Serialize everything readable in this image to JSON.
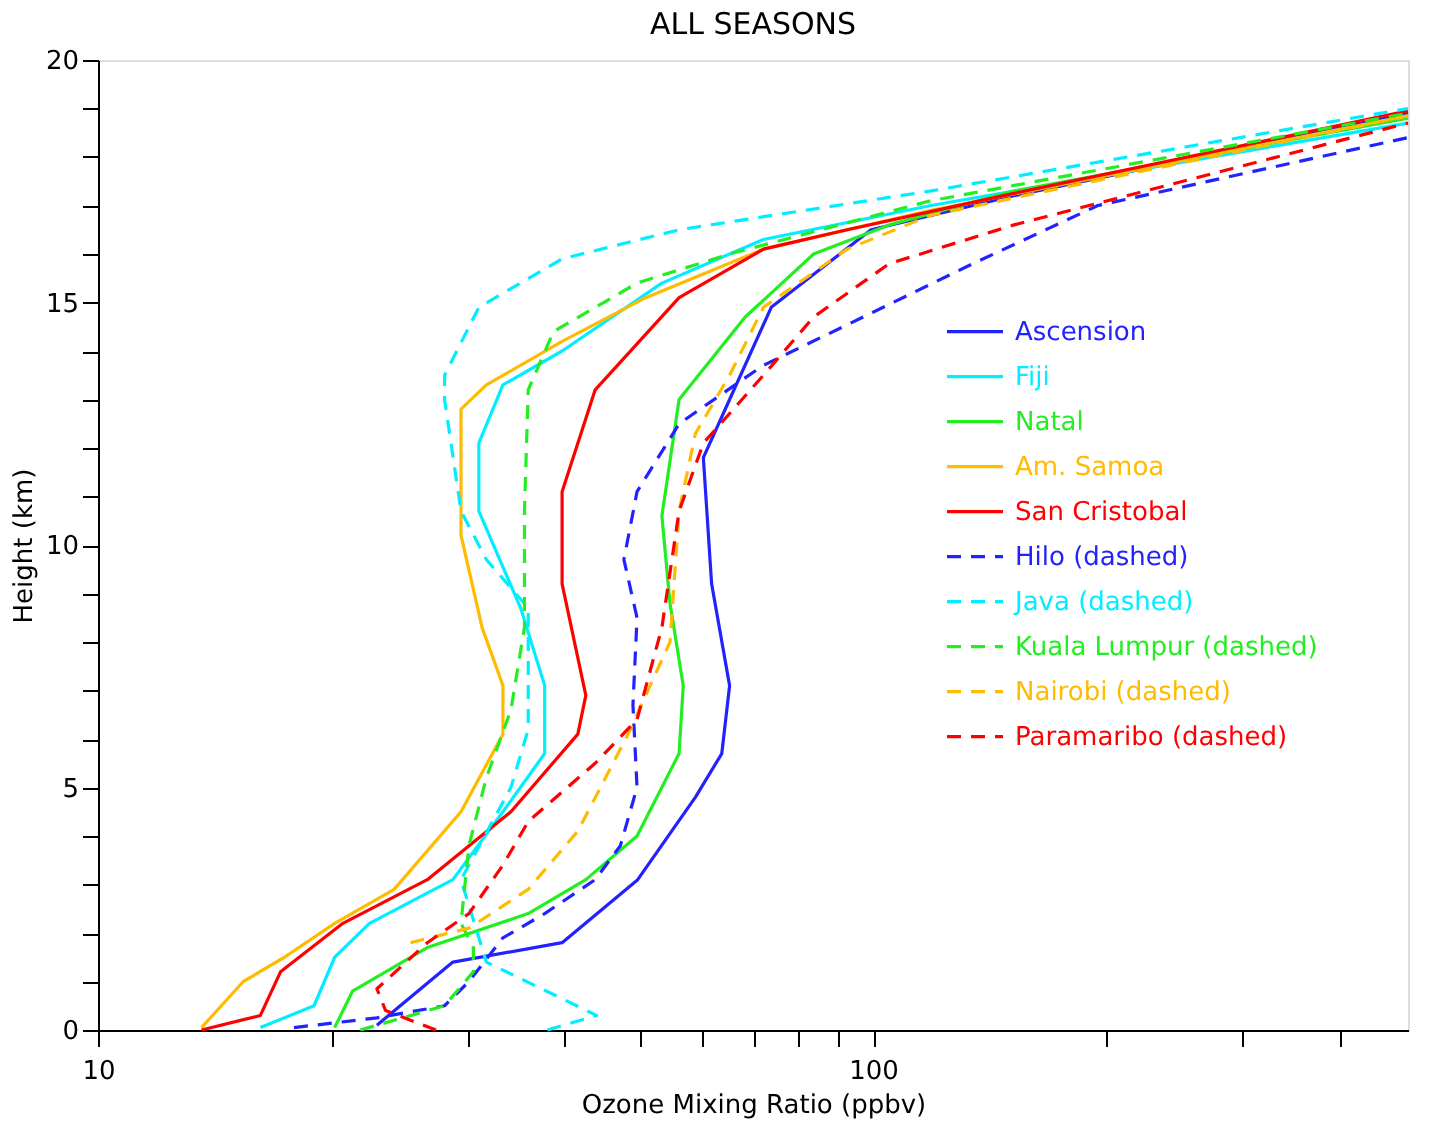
{
  "chart_data": {
    "type": "line",
    "title": "ALL SEASONS",
    "xlabel": "Ozone Mixing Ratio (ppbv)",
    "ylabel": "Height (km)",
    "log": "x",
    "grid": false,
    "legend": "right",
    "marker": "none",
    "xlim": [
      10,
      490
    ],
    "ylim": [
      0,
      20
    ],
    "xticks": [
      10,
      {
        "value": 20,
        "label": null
      },
      {
        "value": 30,
        "label": null
      },
      {
        "value": 40,
        "label": null
      },
      {
        "value": 50,
        "label": null
      },
      {
        "value": 60,
        "label": null
      },
      {
        "value": 70,
        "label": null
      },
      {
        "value": 80,
        "label": null
      },
      {
        "value": 90,
        "label": null
      },
      100,
      {
        "value": 200,
        "label": null
      },
      {
        "value": 300,
        "label": null
      },
      {
        "value": 400,
        "label": null
      }
    ],
    "yticks": [
      0,
      {
        "value": 1,
        "label": null
      },
      {
        "value": 2,
        "label": null
      },
      {
        "value": 3,
        "label": null
      },
      {
        "value": 4,
        "label": null
      },
      5,
      {
        "value": 6,
        "label": null
      },
      {
        "value": 7,
        "label": null
      },
      {
        "value": 8,
        "label": null
      },
      {
        "value": 9,
        "label": null
      },
      10,
      {
        "value": 11,
        "label": null
      },
      {
        "value": 12,
        "label": null
      },
      {
        "value": 13,
        "label": null
      },
      {
        "value": 14,
        "label": null
      },
      15,
      {
        "value": 16,
        "label": null
      },
      {
        "value": 17,
        "label": null
      },
      {
        "value": 18,
        "label": null
      },
      {
        "value": 19,
        "label": null
      },
      20
    ],
    "series": [
      {
        "name": "Ascension",
        "color": "#2222ff",
        "line_style": "solid",
        "x": [
          22.9,
          28.7,
          39.7,
          49.7,
          59.0,
          63.8,
          65.3,
          61.9,
          60.4,
          65.3,
          73.9,
          99.4,
          152,
          490
        ],
        "values": [
          0.1,
          1.4,
          1.8,
          3.1,
          4.8,
          5.7,
          7.1,
          9.2,
          11.8,
          13.0,
          14.9,
          16.5,
          17.2,
          18.9
        ]
      },
      {
        "name": "Fiji",
        "color": "#00eeff",
        "line_style": "solid",
        "x": [
          16.2,
          19.0,
          20.2,
          22.4,
          28.7,
          33.3,
          37.7,
          37.7,
          35.1,
          31.0,
          31.0,
          33.3,
          39.7,
          53.4,
          72.2,
          118.8,
          490
        ],
        "values": [
          0.05,
          0.5,
          1.5,
          2.2,
          3.1,
          4.5,
          5.7,
          7.1,
          8.7,
          10.7,
          12.1,
          13.3,
          14.0,
          15.4,
          16.3,
          17.0,
          18.7
        ]
      },
      {
        "name": "Natal",
        "color": "#22ee22",
        "line_style": "solid",
        "x": [
          20.2,
          21.3,
          26.6,
          35.9,
          42.6,
          49.6,
          56.2,
          56.9,
          54.7,
          53.4,
          56.2,
          68.4,
          83.8,
          104.9,
          152,
          490
        ],
        "values": [
          0.05,
          0.8,
          1.7,
          2.4,
          3.1,
          4.0,
          5.7,
          7.1,
          8.8,
          10.6,
          13.0,
          14.7,
          16.0,
          16.6,
          17.3,
          18.8
        ]
      },
      {
        "name": "Am. Samoa",
        "color": "#ffbb00",
        "line_style": "solid",
        "x": [
          13.6,
          15.4,
          17.4,
          20.2,
          24.1,
          29.4,
          33.3,
          33.3,
          31.3,
          29.4,
          29.4,
          31.7,
          39.7,
          50.9,
          72.2,
          118.8,
          490
        ],
        "values": [
          0.05,
          1.0,
          1.5,
          2.2,
          2.9,
          4.5,
          6.1,
          7.1,
          8.3,
          10.2,
          12.8,
          13.3,
          14.2,
          15.1,
          16.1,
          16.9,
          18.85
        ]
      },
      {
        "name": "San Cristobal",
        "color": "#ff0000",
        "line_style": "solid",
        "x": [
          13.6,
          16.2,
          17.2,
          20.7,
          26.6,
          34.1,
          41.6,
          42.6,
          39.7,
          39.7,
          43.8,
          56.2,
          72.2,
          92.6,
          152,
          490
        ],
        "values": [
          0,
          0.3,
          1.2,
          2.2,
          3.1,
          4.5,
          6.1,
          6.9,
          9.2,
          11.1,
          13.2,
          15.1,
          16.1,
          16.5,
          17.25,
          18.95
        ]
      },
      {
        "name": "Hilo (dashed)",
        "color": "#2222ff",
        "line_style": "dashed",
        "x": [
          17.9,
          22.9,
          28.0,
          30.1,
          33.3,
          37.7,
          43.8,
          47.2,
          49.6,
          49.0,
          49.6,
          47.7,
          49.6,
          56.2,
          72.1,
          97.1,
          134.5,
          195,
          490
        ],
        "values": [
          0.05,
          0.25,
          0.5,
          1.0,
          1.9,
          2.4,
          3.1,
          3.8,
          5.0,
          6.7,
          8.5,
          9.7,
          11.1,
          12.5,
          13.7,
          14.7,
          15.8,
          17.0,
          18.4
        ]
      },
      {
        "name": "Java (dashed)",
        "color": "#00eeff",
        "line_style": "dashed",
        "x": [
          38,
          44,
          31.7,
          29.4,
          34.1,
          35.9,
          35.9,
          31.7,
          29.4,
          28.0,
          28.0,
          31.0,
          39.7,
          56.2,
          118.8,
          490
        ],
        "values": [
          0,
          0.3,
          1.4,
          3.1,
          5.0,
          6.2,
          8.7,
          9.7,
          10.7,
          13.0,
          13.5,
          14.9,
          15.9,
          16.5,
          17.3,
          19.0
        ]
      },
      {
        "name": "Kuala Lumpur (dashed)",
        "color": "#22ee22",
        "line_style": "dashed",
        "x": [
          21.8,
          28.0,
          30.5,
          30.5,
          29.4,
          30.1,
          31.7,
          34.1,
          35.5,
          35.5,
          35.9,
          38.7,
          49.6,
          65.3,
          118.8,
          490
        ],
        "values": [
          0,
          0.5,
          1.2,
          1.7,
          2.2,
          3.8,
          5.2,
          6.6,
          8.3,
          10.7,
          13.2,
          14.4,
          15.4,
          16.0,
          17.1,
          18.9
        ]
      },
      {
        "name": "Nairobi (dashed)",
        "color": "#ffbb00",
        "line_style": "dashed",
        "x": [
          25.3,
          30.1,
          35.9,
          41.6,
          48.3,
          54.7,
          56.2,
          59.0,
          65.3,
          72.2,
          92.6,
          118.8,
          490
        ],
        "values": [
          1.8,
          2.1,
          2.9,
          4.1,
          6.1,
          8.0,
          10.7,
          12.3,
          13.5,
          14.9,
          16.1,
          16.8,
          18.85
        ]
      },
      {
        "name": "Paramaribo (dashed)",
        "color": "#ff0000",
        "line_style": "dashed",
        "x": [
          27.3,
          23.5,
          22.9,
          26.6,
          30.1,
          33.3,
          35.9,
          43.8,
          49.6,
          53.4,
          56.2,
          60.4,
          72.2,
          83.8,
          104.9,
          152,
          490
        ],
        "values": [
          0,
          0.4,
          0.85,
          1.8,
          2.4,
          3.4,
          4.3,
          5.5,
          6.4,
          8.3,
          10.7,
          12.1,
          13.5,
          14.7,
          15.8,
          16.6,
          18.7
        ]
      }
    ]
  }
}
